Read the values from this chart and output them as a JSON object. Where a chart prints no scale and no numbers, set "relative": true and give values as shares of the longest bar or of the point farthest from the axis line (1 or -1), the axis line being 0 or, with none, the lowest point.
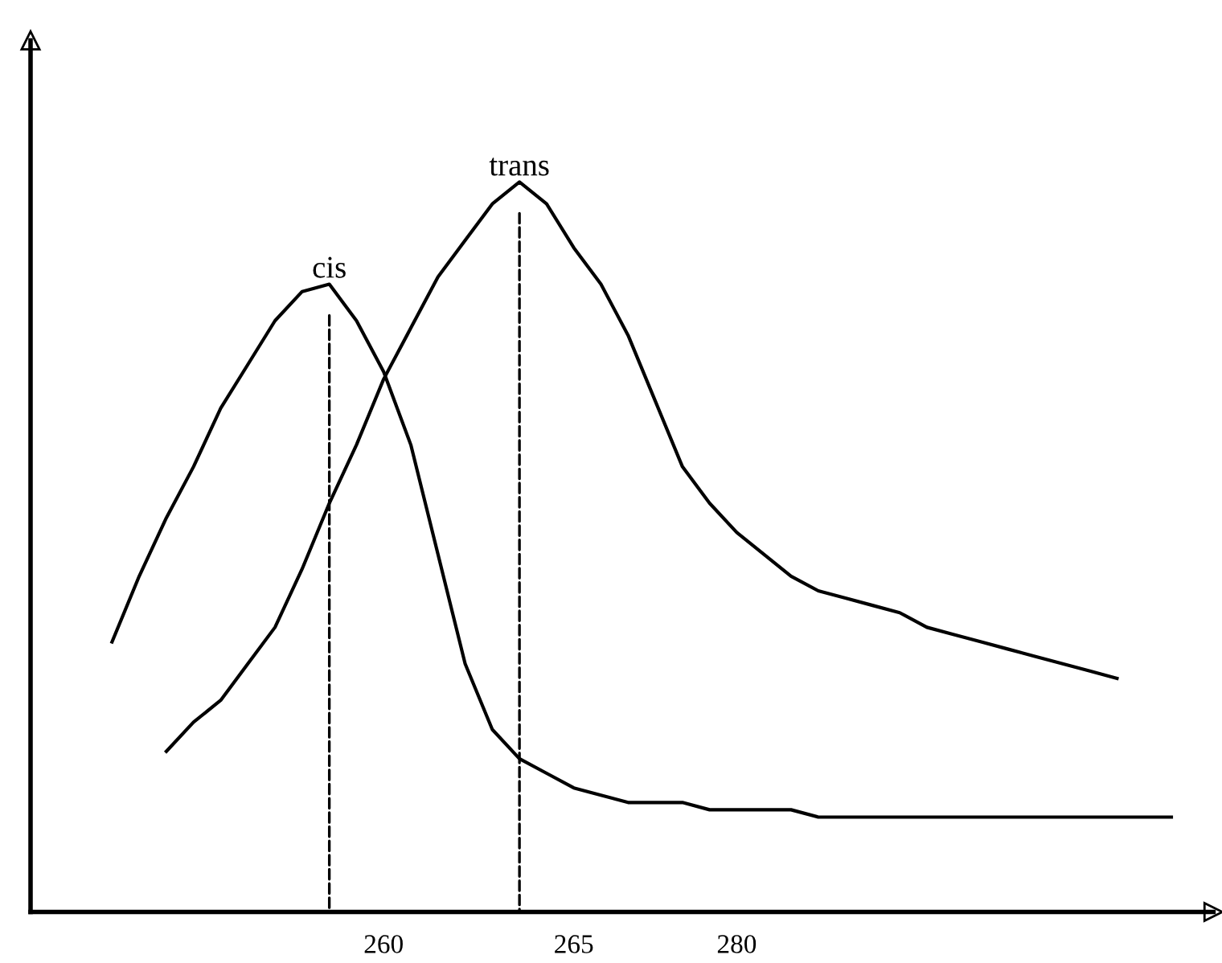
{
  "chart_data": {
    "type": "line",
    "relative": true,
    "categories": [
      null,
      null,
      null,
      null,
      null,
      null,
      null,
      null,
      null,
      null,
      null,
      null,
      null,
      "260",
      null,
      null,
      null,
      null,
      null,
      null,
      "265",
      null,
      null,
      null,
      null,
      null,
      "280",
      null,
      null,
      null,
      null,
      null,
      null,
      null,
      null,
      null,
      null,
      null,
      null,
      null,
      null,
      null,
      null,
      null
    ],
    "series": [
      {
        "color": "#000000",
        "values": [
          null,
          null,
          null,
          0.37,
          0.46,
          0.54,
          0.61,
          0.69,
          0.75,
          0.81,
          0.85,
          0.86,
          0.81,
          0.74,
          0.64,
          0.49,
          0.34,
          0.25,
          0.21,
          0.19,
          0.17,
          0.16,
          0.15,
          0.15,
          0.15,
          0.14,
          0.14,
          0.14,
          0.14,
          0.13,
          0.13,
          0.13,
          0.13,
          0.13,
          0.13,
          0.13,
          0.13,
          0.13,
          0.13,
          0.13,
          0.13,
          0.13,
          0.13,
          null
        ]
      },
      {
        "color": "#000000",
        "values": [
          null,
          null,
          null,
          null,
          null,
          0.22,
          0.26,
          0.29,
          0.34,
          0.39,
          0.47,
          0.56,
          0.64,
          0.73,
          0.8,
          0.87,
          0.92,
          0.97,
          1.0,
          0.97,
          0.91,
          0.86,
          0.79,
          0.7,
          0.61,
          0.56,
          0.52,
          0.49,
          0.46,
          0.44,
          0.43,
          0.42,
          0.41,
          0.39,
          0.38,
          0.37,
          0.36,
          0.35,
          0.34,
          0.33,
          0.32,
          null,
          null,
          null
        ]
      }
    ],
    "annotations": [
      "cis",
      "trans"
    ],
    "grid": false,
    "line_style": "solid",
    "marker": "none"
  }
}
